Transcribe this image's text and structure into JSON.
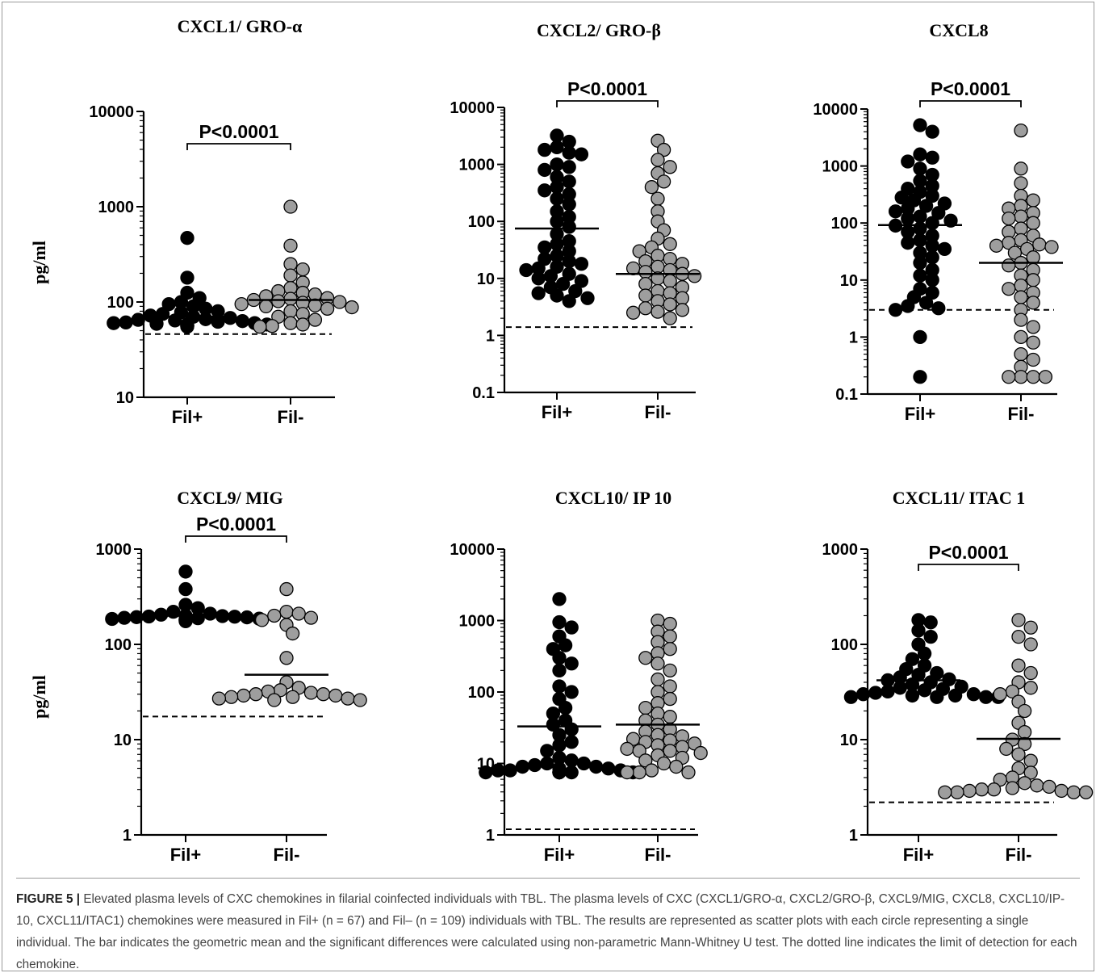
{
  "ylabel": "pg/ml",
  "caption": {
    "label": "FIGURE 5 |",
    "text": " Elevated plasma levels of CXC chemokines in filarial coinfected individuals with TBL. The plasma levels of CXC (CXCL1/GRO-α, CXCL2/GRO-β, CXCL9/MIG, CXCL8, CXCL10/IP-10, CXCL11/ITAC1) chemokines were measured in Fil+ (n = 67) and Fil– (n = 109) individuals with TBL. The results are represented as scatter plots with each circle representing a single individual. The bar indicates the geometric mean and the significant differences were calculated using non-parametric Mann-Whitney U test. The dotted line indicates the limit of detection for each chemokine."
  },
  "colors": {
    "fil_pos": "#000000",
    "fil_neg": "#9e9e9e",
    "outline": "#000000"
  },
  "chart_data": [
    {
      "type": "scatter",
      "scale": "log",
      "title": "CXCL1/ GRO-α",
      "categories": [
        "Fil+",
        "Fil-"
      ],
      "ylim": [
        10,
        10000
      ],
      "yticks": [
        10,
        100,
        1000,
        10000
      ],
      "ytick_labels": [
        "10",
        "100",
        "1000",
        "10000"
      ],
      "pvalue": "P<0.0001",
      "lod": 46,
      "series": [
        {
          "name": "Fil+",
          "mean": 70,
          "values": [
            470,
            180,
            125,
            110,
            100,
            95,
            90,
            85,
            80,
            78,
            75,
            72,
            70,
            68,
            66,
            65,
            64,
            63,
            62,
            61,
            60,
            60,
            59,
            58,
            58,
            57,
            57,
            56,
            56,
            55
          ]
        },
        {
          "name": "Fil-",
          "mean": 105,
          "values": [
            1000,
            390,
            250,
            220,
            190,
            160,
            140,
            130,
            125,
            120,
            115,
            110,
            108,
            105,
            102,
            100,
            98,
            95,
            92,
            90,
            88,
            85,
            80,
            75,
            70,
            65,
            60,
            58,
            56,
            55
          ]
        }
      ]
    },
    {
      "type": "scatter",
      "scale": "log",
      "title": "CXCL2/ GRO-β",
      "categories": [
        "Fil+",
        "Fil-"
      ],
      "ylim": [
        0.1,
        10000
      ],
      "yticks": [
        0.1,
        1,
        10,
        100,
        1000,
        10000
      ],
      "ytick_labels": [
        "0.1",
        "1",
        "10",
        "100",
        "1000",
        "10000"
      ],
      "pvalue": "P<0.0001",
      "lod": 1.4,
      "series": [
        {
          "name": "Fil+",
          "mean": 75,
          "values": [
            3200,
            2500,
            2000,
            1800,
            1600,
            1500,
            1000,
            900,
            800,
            600,
            500,
            400,
            350,
            300,
            250,
            200,
            150,
            120,
            100,
            80,
            60,
            45,
            40,
            35,
            30,
            25,
            22,
            20,
            18,
            16,
            15,
            14,
            12,
            11,
            10,
            9,
            8,
            7,
            6,
            5.5,
            5,
            4.5,
            4
          ]
        },
        {
          "name": "Fil-",
          "mean": 12,
          "values": [
            2600,
            1800,
            1200,
            900,
            700,
            500,
            400,
            250,
            150,
            100,
            70,
            50,
            40,
            35,
            30,
            25,
            22,
            20,
            18,
            16,
            15,
            14,
            13,
            12,
            11,
            10,
            9,
            8,
            7,
            6,
            5.5,
            5,
            4.5,
            4,
            3.5,
            3,
            2.8,
            2.6,
            2.5,
            2
          ]
        }
      ]
    },
    {
      "type": "scatter",
      "scale": "log",
      "title": "CXCL8",
      "categories": [
        "Fil+",
        "Fil-"
      ],
      "ylim": [
        0.1,
        10000
      ],
      "yticks": [
        0.1,
        1,
        10,
        100,
        1000,
        10000
      ],
      "ytick_labels": [
        "0.1",
        "1",
        "10",
        "100",
        "1000",
        "10000"
      ],
      "pvalue": "P<0.0001",
      "lod": 3,
      "series": [
        {
          "name": "Fil+",
          "mean": 92,
          "values": [
            5200,
            4000,
            1600,
            1400,
            1200,
            900,
            700,
            550,
            450,
            400,
            350,
            300,
            280,
            250,
            220,
            200,
            180,
            160,
            150,
            130,
            120,
            110,
            100,
            90,
            80,
            70,
            60,
            50,
            45,
            40,
            35,
            30,
            25,
            20,
            15,
            12,
            10,
            7,
            6,
            5,
            4,
            3.5,
            3.2,
            3,
            1,
            0.2
          ]
        },
        {
          "name": "Fil-",
          "mean": 20,
          "values": [
            4200,
            900,
            500,
            300,
            250,
            200,
            180,
            150,
            130,
            120,
            100,
            80,
            70,
            60,
            50,
            45,
            42,
            40,
            38,
            35,
            30,
            25,
            20,
            18,
            15,
            12,
            10,
            8,
            7,
            6,
            5,
            4,
            3,
            2,
            1.5,
            1,
            0.8,
            0.5,
            0.4,
            0.3,
            0.2,
            0.2,
            0.2,
            0.2
          ]
        }
      ]
    },
    {
      "type": "scatter",
      "scale": "log",
      "title": "CXCL9/ MIG",
      "categories": [
        "Fil+",
        "Fil-"
      ],
      "ylim": [
        1,
        1000
      ],
      "yticks": [
        1,
        10,
        100,
        1000
      ],
      "ytick_labels": [
        "1",
        "10",
        "100",
        "1000"
      ],
      "pvalue": "P<0.0001",
      "lod": 17.5,
      "series": [
        {
          "name": "Fil+",
          "mean": 200,
          "values": [
            580,
            380,
            260,
            240,
            220,
            210,
            205,
            200,
            198,
            196,
            195,
            193,
            192,
            190,
            188,
            186,
            185,
            183,
            182,
            180,
            178,
            175
          ]
        },
        {
          "name": "Fil-",
          "mean": 48,
          "values": [
            380,
            220,
            210,
            200,
            190,
            180,
            160,
            130,
            72,
            40,
            35,
            33,
            32,
            31,
            30,
            30,
            29,
            29,
            28,
            28,
            27,
            27,
            26,
            26
          ]
        }
      ]
    },
    {
      "type": "scatter",
      "scale": "log",
      "title": "CXCL10/ IP 10",
      "categories": [
        "Fil+",
        "Fil-"
      ],
      "ylim": [
        1,
        10000
      ],
      "yticks": [
        1,
        10,
        100,
        1000,
        10000
      ],
      "ytick_labels": [
        "1",
        "10",
        "100",
        "1000",
        "10000"
      ],
      "pvalue": "",
      "lod": 1.2,
      "series": [
        {
          "name": "Fil+",
          "mean": 33,
          "values": [
            2000,
            950,
            800,
            600,
            450,
            400,
            300,
            250,
            200,
            120,
            100,
            80,
            60,
            50,
            40,
            35,
            30,
            25,
            20,
            18,
            15,
            12,
            11,
            10,
            10,
            9.5,
            9,
            9,
            8.5,
            8.5,
            8,
            8,
            8,
            7.5,
            7.5,
            7.5,
            7.5,
            7.5,
            7.5,
            7.5
          ]
        },
        {
          "name": "Fil-",
          "mean": 35,
          "values": [
            1000,
            900,
            700,
            600,
            500,
            400,
            350,
            300,
            250,
            200,
            150,
            120,
            100,
            80,
            70,
            60,
            50,
            45,
            40,
            35,
            30,
            28,
            25,
            24,
            22,
            21,
            20,
            19,
            18,
            17,
            16,
            15,
            15,
            14,
            13,
            12,
            11,
            10,
            9,
            8,
            7.5,
            7.5,
            7.5
          ]
        }
      ]
    },
    {
      "type": "scatter",
      "scale": "log",
      "title": "CXCL11/ ITAC 1",
      "categories": [
        "Fil+",
        "Fil-"
      ],
      "ylim": [
        1,
        1000
      ],
      "yticks": [
        1,
        10,
        100,
        1000
      ],
      "ytick_labels": [
        "1",
        "10",
        "100",
        "1000"
      ],
      "pvalue": "P<0.0001",
      "lod": 2.2,
      "series": [
        {
          "name": "Fil+",
          "mean": 42,
          "values": [
            180,
            170,
            140,
            120,
            100,
            80,
            70,
            60,
            55,
            50,
            48,
            45,
            43,
            42,
            40,
            38,
            36,
            35,
            34,
            33,
            32,
            31,
            30,
            30,
            29,
            29,
            28,
            28,
            28,
            28
          ]
        },
        {
          "name": "Fil-",
          "mean": 10.2,
          "values": [
            180,
            150,
            120,
            100,
            60,
            50,
            40,
            35,
            32,
            30,
            25,
            20,
            15,
            12,
            10,
            9,
            8,
            7,
            6,
            5,
            4.5,
            4,
            3.8,
            3.5,
            3.3,
            3.2,
            3.1,
            3,
            3,
            2.9,
            2.9,
            2.8,
            2.8,
            2.8,
            2.8
          ]
        }
      ]
    }
  ]
}
